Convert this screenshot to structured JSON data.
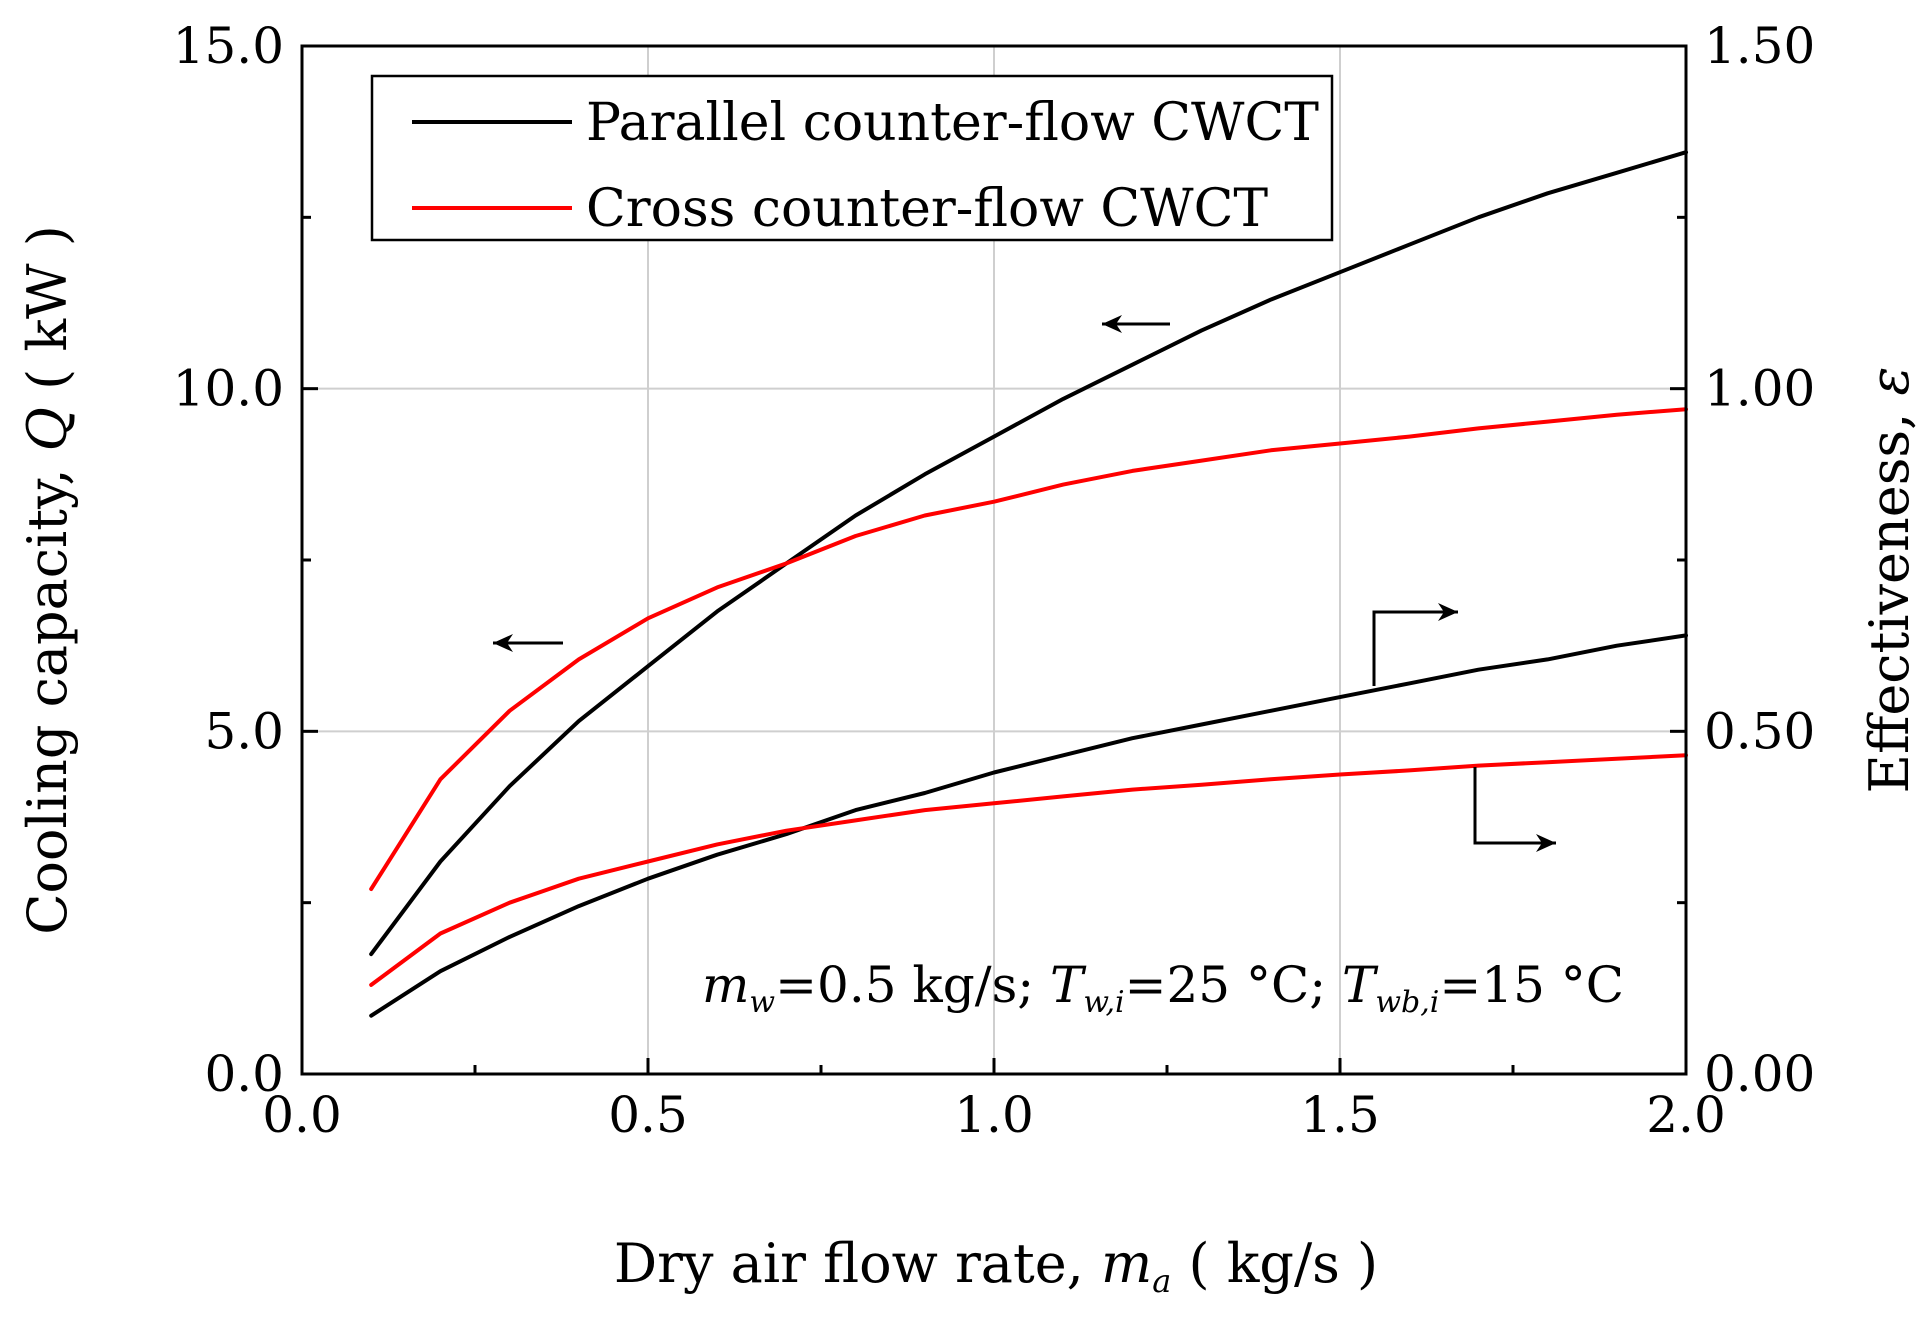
{
  "chart_data": {
    "type": "line",
    "xlabel": {
      "prefix": "Dry air flow rate, ",
      "var": "m",
      "sub": "a",
      "suffix": " ( kg/s )"
    },
    "ylabel_left": {
      "prefix": "Cooling capacity, ",
      "var": "Q",
      "suffix": " ( kW )"
    },
    "ylabel_right": {
      "prefix": "Effectiveness, ",
      "var": "ε"
    },
    "xlim": [
      0.0,
      2.0
    ],
    "ylim_left": [
      0.0,
      15.0
    ],
    "ylim_right": [
      0.0,
      1.5
    ],
    "x_ticks": [
      "0.0",
      "0.5",
      "1.0",
      "1.5",
      "2.0"
    ],
    "y_ticks_left": [
      "0.0",
      "5.0",
      "10.0",
      "15.0"
    ],
    "y_ticks_right": [
      "0.00",
      "0.50",
      "1.00",
      "1.50"
    ],
    "grid": true,
    "legend_position": "top-left",
    "legend": [
      {
        "label": "Parallel counter-flow CWCT",
        "color": "#000000"
      },
      {
        "label": "Cross counter-flow CWCT",
        "color": "#ff0000"
      }
    ],
    "annotation": {
      "m": "m",
      "m_sub": "w",
      "m_val": "=0.5 kg/s; ",
      "t1": "T",
      "t1_sub": "w,i",
      "t1_val": "=25 °C; ",
      "t2": "T",
      "t2_sub": "wb,i",
      "t2_val": "=15 °C"
    },
    "series": [
      {
        "name": "Parallel counter-flow CWCT",
        "color": "#000000",
        "axis": "left",
        "quantity": "Q",
        "x": [
          0.1,
          0.2,
          0.3,
          0.4,
          0.5,
          0.6,
          0.7,
          0.8,
          0.9,
          1.0,
          1.1,
          1.2,
          1.3,
          1.4,
          1.5,
          1.6,
          1.7,
          1.8,
          1.9,
          2.0
        ],
        "y": [
          1.75,
          3.1,
          4.2,
          5.15,
          5.95,
          6.75,
          7.45,
          8.15,
          8.75,
          9.3,
          9.85,
          10.35,
          10.85,
          11.3,
          11.7,
          12.1,
          12.5,
          12.85,
          13.15,
          13.45
        ]
      },
      {
        "name": "Cross counter-flow CWCT",
        "color": "#ff0000",
        "axis": "left",
        "quantity": "Q",
        "x": [
          0.1,
          0.2,
          0.3,
          0.4,
          0.5,
          0.6,
          0.7,
          0.8,
          0.9,
          1.0,
          1.1,
          1.2,
          1.3,
          1.4,
          1.5,
          1.6,
          1.7,
          1.8,
          1.9,
          2.0
        ],
        "y": [
          2.7,
          4.3,
          5.3,
          6.05,
          6.65,
          7.1,
          7.45,
          7.85,
          8.15,
          8.35,
          8.6,
          8.8,
          8.95,
          9.1,
          9.2,
          9.3,
          9.42,
          9.52,
          9.62,
          9.7
        ]
      },
      {
        "name": "Parallel counter-flow CWCT",
        "color": "#000000",
        "axis": "right",
        "quantity": "ε",
        "x": [
          0.1,
          0.2,
          0.3,
          0.4,
          0.5,
          0.6,
          0.7,
          0.8,
          0.9,
          1.0,
          1.1,
          1.2,
          1.3,
          1.4,
          1.5,
          1.6,
          1.7,
          1.8,
          1.9,
          2.0
        ],
        "y": [
          0.085,
          0.15,
          0.2,
          0.245,
          0.285,
          0.32,
          0.35,
          0.385,
          0.41,
          0.44,
          0.465,
          0.49,
          0.51,
          0.53,
          0.55,
          0.57,
          0.59,
          0.605,
          0.625,
          0.64
        ]
      },
      {
        "name": "Cross counter-flow CWCT",
        "color": "#ff0000",
        "axis": "right",
        "quantity": "ε",
        "x": [
          0.1,
          0.2,
          0.3,
          0.4,
          0.5,
          0.6,
          0.7,
          0.8,
          0.9,
          1.0,
          1.1,
          1.2,
          1.3,
          1.4,
          1.5,
          1.6,
          1.7,
          1.8,
          1.9,
          2.0
        ],
        "y": [
          0.13,
          0.205,
          0.25,
          0.285,
          0.31,
          0.335,
          0.355,
          0.37,
          0.385,
          0.395,
          0.405,
          0.415,
          0.422,
          0.43,
          0.437,
          0.443,
          0.45,
          0.455,
          0.46,
          0.465
        ]
      }
    ]
  }
}
